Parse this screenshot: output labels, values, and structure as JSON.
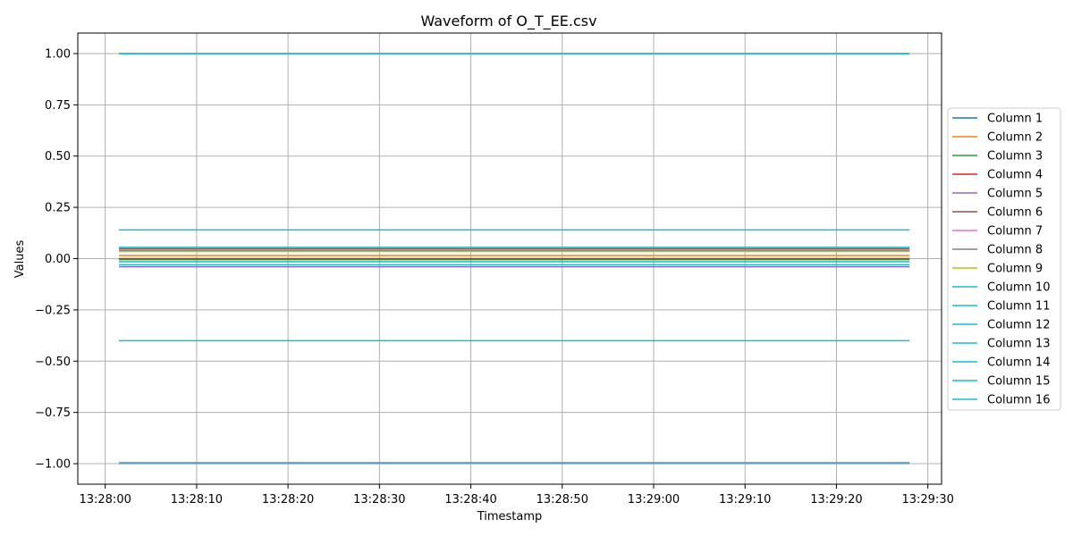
{
  "chart_data": {
    "type": "line",
    "title": "Waveform of O_T_EE.csv",
    "xlabel": "Timestamp",
    "ylabel": "Values",
    "x_range": [
      "13:28:01.5",
      "13:29:28"
    ],
    "xlim": [
      "13:27:57",
      "13:29:31.5"
    ],
    "ylim": [
      -1.1,
      1.1
    ],
    "x_ticks": [
      "13:28:00",
      "13:28:10",
      "13:28:20",
      "13:28:30",
      "13:28:40",
      "13:28:50",
      "13:29:00",
      "13:29:10",
      "13:29:20",
      "13:29:30"
    ],
    "y_ticks": [
      1.0,
      0.75,
      0.5,
      0.25,
      0.0,
      -0.25,
      -0.5,
      -0.75,
      -1.0
    ],
    "y_tick_labels": [
      "1.00",
      "0.75",
      "0.50",
      "0.25",
      "0.00",
      "−0.25",
      "−0.50",
      "−0.75",
      "−1.00"
    ],
    "grid": true,
    "legend_position": "right",
    "series": [
      {
        "name": "Column 1",
        "color": "#1f77b4",
        "value": 1.0
      },
      {
        "name": "Column 2",
        "color": "#ff7f0e",
        "value": 0.015
      },
      {
        "name": "Column 3",
        "color": "#2ca02c",
        "value": -0.005
      },
      {
        "name": "Column 4",
        "color": "#d62728",
        "value": 0.0
      },
      {
        "name": "Column 5",
        "color": "#9467bd",
        "value": -0.04
      },
      {
        "name": "Column 6",
        "color": "#8c564b",
        "value": 0.048
      },
      {
        "name": "Column 7",
        "color": "#e377c2",
        "value": -1.0
      },
      {
        "name": "Column 8",
        "color": "#7f7f7f",
        "value": 0.04
      },
      {
        "name": "Column 9",
        "color": "#bcbd22",
        "value": 0.035
      },
      {
        "name": "Column 10",
        "color": "#17becf",
        "value": -0.4
      },
      {
        "name": "Column 11",
        "color": "#17becf",
        "value": -0.03
      },
      {
        "name": "Column 12",
        "color": "#17becf",
        "value": 0.14
      },
      {
        "name": "Column 13",
        "color": "#17becf",
        "value": 0.055
      },
      {
        "name": "Column 14",
        "color": "#17becf",
        "value": -0.995
      },
      {
        "name": "Column 15",
        "color": "#17becf",
        "value": -0.015
      },
      {
        "name": "Column 16",
        "color": "#17becf",
        "value": 1.0
      }
    ]
  }
}
